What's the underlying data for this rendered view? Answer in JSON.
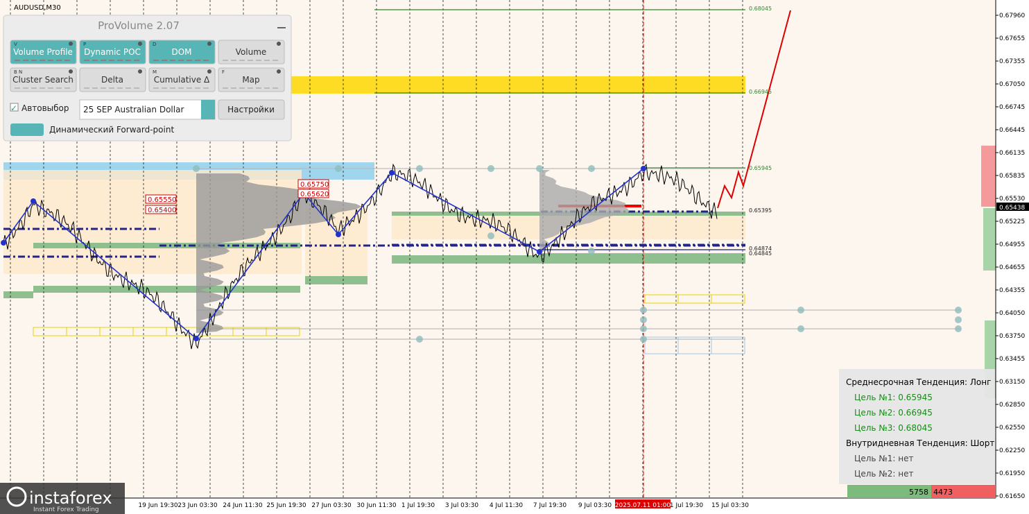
{
  "symbol": "AUDUSD,M30",
  "panel": {
    "title": "ProVolume 2.07",
    "buttons": [
      {
        "key": "V",
        "label": "Volume Profile",
        "active": true
      },
      {
        "key": "P",
        "label": "Dynamic POC",
        "active": true
      },
      {
        "key": "D",
        "label": "DOM",
        "active": true
      },
      {
        "label": "Volume",
        "active": false
      },
      {
        "key": "B N",
        "label": "Cluster Search",
        "active": false
      },
      {
        "label": "Delta",
        "active": false
      },
      {
        "key": "M",
        "label": "Cumulative Δ",
        "active": false
      },
      {
        "key": "F",
        "label": "Map",
        "active": false
      }
    ],
    "autoselect": "Автовыбор",
    "instrument": "25 SEP Australian Dollar",
    "settings": "Настройки",
    "forward_point": "Динамический Forward-point"
  },
  "price_axis": {
    "labels": [
      "0.67960",
      "0.67655",
      "0.67355",
      "0.67050",
      "0.66745",
      "0.66445",
      "0.66135",
      "0.65835",
      "0.65530",
      "0.65225",
      "0.64955",
      "0.64655",
      "0.64355",
      "0.64050",
      "0.63750",
      "0.63455",
      "0.63150",
      "0.62850",
      "0.62550",
      "0.62250",
      "0.61950",
      "0.61650"
    ],
    "current": "0.65438"
  },
  "time_axis": {
    "labels": [
      "19 Jun 19:30",
      "23 Jun 03:30",
      "24 Jun 11:30",
      "25 Jun 19:30",
      "27 Jun 03:30",
      "30 Jun 11:30",
      "1 Jul 19:30",
      "3 Jul 03:30",
      "4 Jul 11:30",
      "7 Jul 19:30",
      "9 Jul 03:30",
      "2025.07.11 01:00",
      "1 Jul 19:30",
      "15 Jul 03:30"
    ]
  },
  "levels": [
    "0.68045",
    "0.66945",
    "0.65945",
    "0.65395",
    "0.64874",
    "0.64845"
  ],
  "box_labels": [
    "0.65550",
    "0.65400",
    "0.65750",
    "0.65620"
  ],
  "info": {
    "sections": [
      {
        "heading": "Среднесрочная Тенденция: Лонг",
        "targets": [
          "Цель №1: 0.65945",
          "Цель №2: 0.66945",
          "Цель №3: 0.68045"
        ]
      },
      {
        "heading": "Внутридневная Тенденция: Шорт",
        "targets": [
          "Цель №1: нет",
          "Цель №2: нет"
        ]
      }
    ],
    "buy": "5758",
    "sell": "4473"
  },
  "logo": {
    "name": "instaforex",
    "tagline": "Instant Forex Trading"
  }
}
